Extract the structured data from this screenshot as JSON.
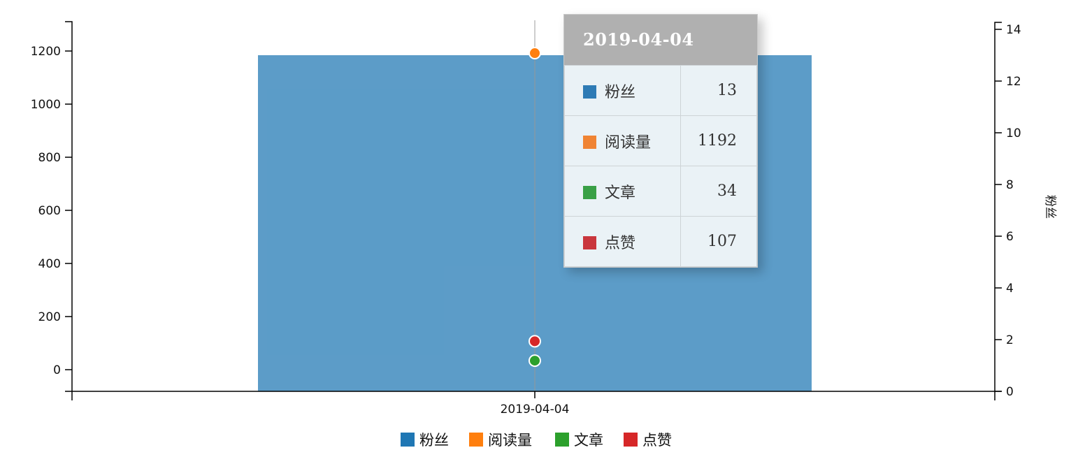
{
  "chart_data": {
    "type": "bar",
    "categories": [
      "2019-04-04"
    ],
    "series": [
      {
        "name": "粉丝",
        "kind": "bar",
        "axis": "right",
        "color": "#1f77b4",
        "values": [
          13
        ]
      },
      {
        "name": "阅读量",
        "kind": "point",
        "axis": "left",
        "color": "#ff7f0e",
        "values": [
          1192
        ]
      },
      {
        "name": "文章",
        "kind": "point",
        "axis": "left",
        "color": "#2ca02c",
        "values": [
          34
        ]
      },
      {
        "name": "点赞",
        "kind": "point",
        "axis": "left",
        "color": "#d62728",
        "values": [
          107
        ]
      }
    ],
    "y_left": {
      "ticks": [
        0,
        200,
        400,
        600,
        800,
        1000,
        1200
      ],
      "tick_labels": [
        "0",
        "200",
        "400",
        "600",
        "800",
        "1000",
        "1200"
      ],
      "label": ""
    },
    "y_right": {
      "ticks": [
        0,
        2,
        4,
        6,
        8,
        10,
        12,
        14
      ],
      "tick_labels": [
        "0",
        "2",
        "4",
        "6",
        "8",
        "10",
        "12",
        "14"
      ],
      "label": "粉丝",
      "ylim": [
        0,
        14
      ]
    },
    "x_tick_labels": [
      "2019-04-04"
    ],
    "legend": {
      "placement": "bottom",
      "items": [
        {
          "name": "粉丝",
          "color": "#1f77b4"
        },
        {
          "name": "阅读量",
          "color": "#ff7f0e"
        },
        {
          "name": "文章",
          "color": "#2ca02c"
        },
        {
          "name": "点赞",
          "color": "#d62728"
        }
      ]
    },
    "grid": false
  },
  "tooltip": {
    "title": "2019-04-04",
    "rows": [
      {
        "name": "粉丝",
        "value": "13",
        "color": "#2e7bb5"
      },
      {
        "name": "阅读量",
        "value": "1192",
        "color": "#f08434"
      },
      {
        "name": "文章",
        "value": "34",
        "color": "#39a046"
      },
      {
        "name": "点赞",
        "value": "107",
        "color": "#c9363d"
      }
    ]
  }
}
